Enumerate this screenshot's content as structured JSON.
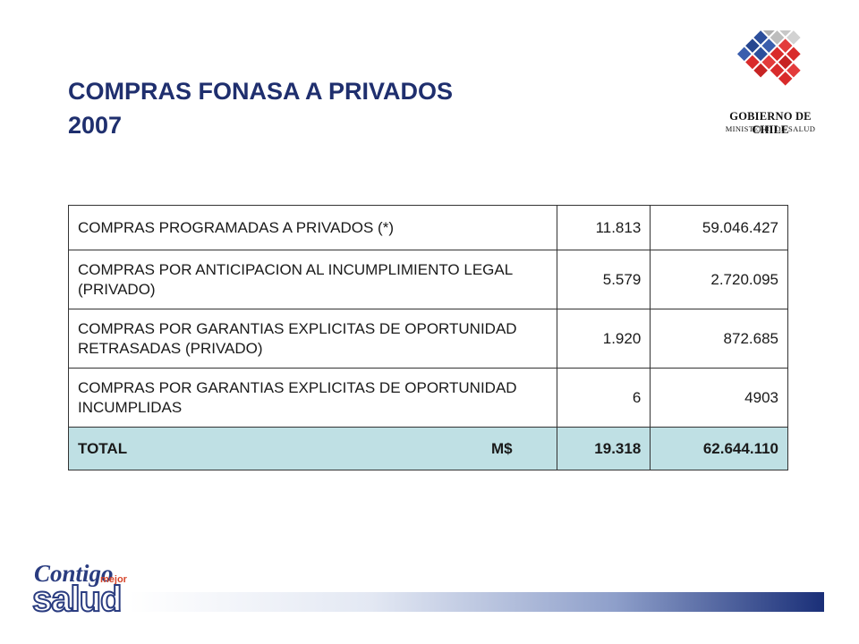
{
  "title": {
    "line1": "COMPRAS FONASA A PRIVADOS",
    "line2": "2007"
  },
  "logo": {
    "name": "GOBIERNO DE CHILE",
    "subtitle": "MINISTERIO DE SALUD",
    "colors": {
      "blue": "#2c4f9c",
      "red": "#d92b2b",
      "gray": "#b8b8b8"
    }
  },
  "table": {
    "rows": [
      {
        "label": "COMPRAS PROGRAMADAS  A PRIVADOS (*)",
        "v1": "11.813",
        "v2": "59.046.427"
      },
      {
        "label": "COMPRAS POR ANTICIPACION AL INCUMPLIMIENTO LEGAL (PRIVADO)",
        "v1": "5.579",
        "v2": "2.720.095"
      },
      {
        "label": "COMPRAS POR GARANTIAS EXPLICITAS DE OPORTUNIDAD RETRASADAS (PRIVADO)",
        "v1": "1.920",
        "v2": "872.685"
      },
      {
        "label": "COMPRAS POR GARANTIAS EXPLICITAS DE OPORTUNIDAD INCUMPLIDAS",
        "v1": "6",
        "v2": "4903"
      }
    ],
    "total": {
      "label": "TOTAL",
      "unit": "M$",
      "v1": "19.318",
      "v2": "62.644.110"
    },
    "total_bg": "#bfe0e4"
  },
  "footer": {
    "brand_line1": "Contigo",
    "brand_small": "mejor",
    "brand_line2": "salud"
  }
}
